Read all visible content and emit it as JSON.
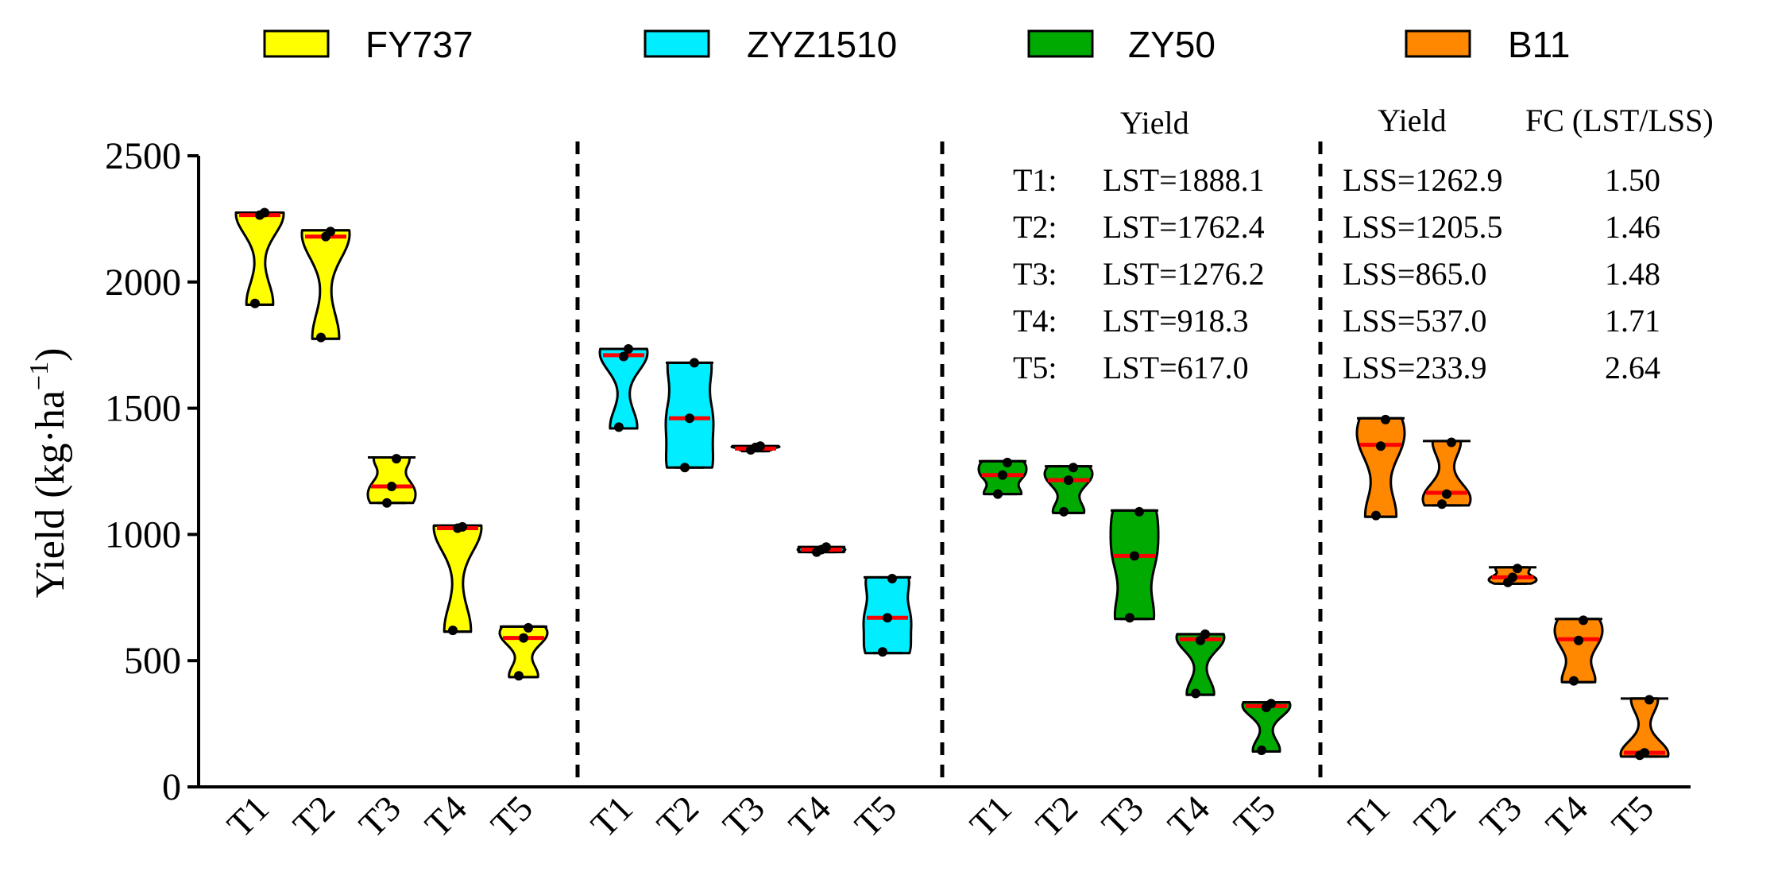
{
  "chart_data": {
    "type": "violin",
    "y_label": "Yield (kg·ha",
    "y_label_unit_superscript": "−1",
    "y_label_close": ")",
    "ylim": [
      0,
      2500
    ],
    "y_ticks": [
      0,
      500,
      1000,
      1500,
      2000,
      2500
    ],
    "categories": [
      "T1",
      "T2",
      "T3",
      "T4",
      "T5"
    ],
    "legend_placement": "top",
    "series": [
      {
        "name": "FY737",
        "color": "#ffff00",
        "groups": [
          {
            "label": "T1",
            "min": 1910,
            "max": 2275,
            "median": 2265,
            "points": [
              1915,
              2265,
              2275
            ]
          },
          {
            "label": "T2",
            "min": 1775,
            "max": 2205,
            "median": 2180,
            "points": [
              1780,
              2180,
              2200
            ]
          },
          {
            "label": "T3",
            "min": 1125,
            "max": 1305,
            "median": 1190,
            "points": [
              1125,
              1190,
              1300
            ]
          },
          {
            "label": "T4",
            "min": 615,
            "max": 1035,
            "median": 1025,
            "points": [
              620,
              1025,
              1030
            ]
          },
          {
            "label": "T5",
            "min": 435,
            "max": 635,
            "median": 590,
            "points": [
              440,
              590,
              630
            ]
          }
        ]
      },
      {
        "name": "ZYZ1510",
        "color": "#00eeff",
        "groups": [
          {
            "label": "T1",
            "min": 1420,
            "max": 1735,
            "median": 1710,
            "points": [
              1425,
              1705,
              1735
            ]
          },
          {
            "label": "T2",
            "min": 1265,
            "max": 1680,
            "median": 1460,
            "points": [
              1265,
              1460,
              1680
            ]
          },
          {
            "label": "T3",
            "min": 1330,
            "max": 1350,
            "median": 1340,
            "points": [
              1335,
              1345,
              1350
            ]
          },
          {
            "label": "T4",
            "min": 930,
            "max": 950,
            "median": 940,
            "points": [
              930,
              940,
              950
            ]
          },
          {
            "label": "T5",
            "min": 530,
            "max": 830,
            "median": 670,
            "points": [
              535,
              670,
              825
            ]
          }
        ]
      },
      {
        "name": "ZY50",
        "color": "#00aa00",
        "groups": [
          {
            "label": "T1",
            "min": 1160,
            "max": 1290,
            "median": 1235,
            "points": [
              1160,
              1235,
              1285
            ]
          },
          {
            "label": "T2",
            "min": 1085,
            "max": 1270,
            "median": 1215,
            "points": [
              1090,
              1215,
              1265
            ]
          },
          {
            "label": "T3",
            "min": 665,
            "max": 1095,
            "median": 915,
            "points": [
              670,
              915,
              1090
            ]
          },
          {
            "label": "T4",
            "min": 365,
            "max": 605,
            "median": 585,
            "points": [
              370,
              580,
              605
            ]
          },
          {
            "label": "T5",
            "min": 140,
            "max": 335,
            "median": 320,
            "points": [
              145,
              315,
              330
            ]
          }
        ]
      },
      {
        "name": "B11",
        "color": "#ff8800",
        "groups": [
          {
            "label": "T1",
            "min": 1070,
            "max": 1460,
            "median": 1355,
            "points": [
              1075,
              1350,
              1455
            ]
          },
          {
            "label": "T2",
            "min": 1115,
            "max": 1370,
            "median": 1165,
            "points": [
              1120,
              1160,
              1365
            ]
          },
          {
            "label": "T3",
            "min": 805,
            "max": 870,
            "median": 830,
            "points": [
              810,
              830,
              865
            ]
          },
          {
            "label": "T4",
            "min": 415,
            "max": 665,
            "median": 585,
            "points": [
              420,
              580,
              660
            ]
          },
          {
            "label": "T5",
            "min": 120,
            "max": 350,
            "median": 135,
            "points": [
              125,
              135,
              345
            ]
          }
        ]
      }
    ],
    "annotation_table": {
      "headers": {
        "lst_yield": "Yield",
        "lss_yield": "Yield",
        "fc": "FC (LST/LSS)"
      },
      "rows": [
        {
          "treatment": "T1:",
          "lst": "LST=1888.1",
          "lss": "LSS=1262.9",
          "fc": "1.50"
        },
        {
          "treatment": "T2:",
          "lst": "LST=1762.4",
          "lss": "LSS=1205.5",
          "fc": "1.46"
        },
        {
          "treatment": "T3:",
          "lst": "LST=1276.2",
          "lss": "LSS=865.0",
          "fc": "1.48"
        },
        {
          "treatment": "T4:",
          "lst": "LST=918.3",
          "lss": "LSS=537.0",
          "fc": "1.71"
        },
        {
          "treatment": "T5:",
          "lst": "LST=617.0",
          "lss": "LSS=233.9",
          "fc": "2.64"
        }
      ]
    },
    "median_color": "#ff0000",
    "point_color": "#000000"
  }
}
